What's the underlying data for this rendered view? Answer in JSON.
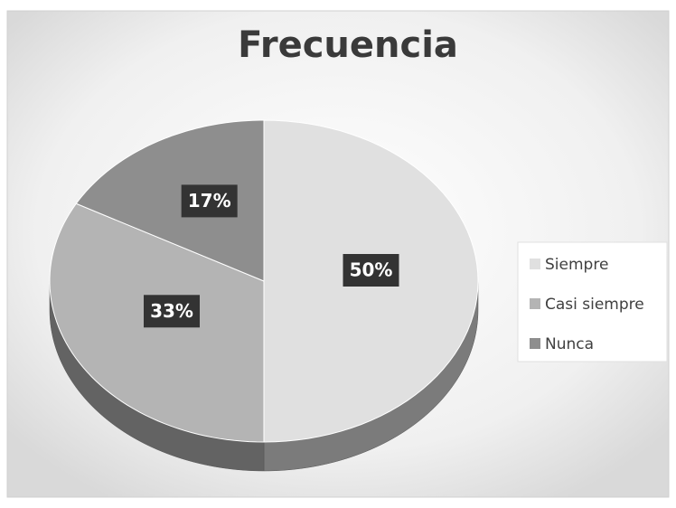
{
  "chart_data": {
    "type": "pie",
    "title": "Frecuencia",
    "categories": [
      "Siempre",
      "Casi siempre",
      "Nunca"
    ],
    "values": [
      50,
      33,
      17
    ],
    "value_labels": [
      "50%",
      "33%",
      "17%"
    ],
    "colors": [
      "#e0e0e0",
      "#b4b4b4",
      "#8e8e8e"
    ],
    "legend": "right"
  }
}
